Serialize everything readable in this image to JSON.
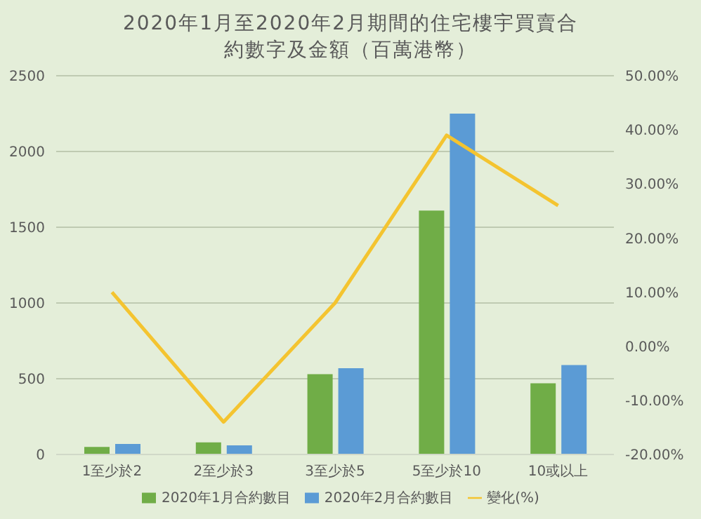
{
  "chart_data": {
    "type": "bar",
    "title": "2020年1月至2020年2月期間的住宅樓宇買賣合約數字及金額（百萬港幣）",
    "categories": [
      "1至少於2",
      "2至少於3",
      "3至少於5",
      "5至少於10",
      "10或以上"
    ],
    "series": [
      {
        "name": "2020年1月合約數目",
        "color": "#70ad47",
        "values": [
          50,
          80,
          530,
          1610,
          470
        ]
      },
      {
        "name": "2020年2月合約數目",
        "color": "#5b9bd5",
        "values": [
          70,
          60,
          570,
          2250,
          590
        ]
      },
      {
        "name": "變化(%)",
        "type": "line",
        "axis": "y2",
        "color": "#f4c430",
        "values": [
          10,
          -14,
          8,
          39,
          26
        ]
      }
    ],
    "ylim": [
      0,
      2500
    ],
    "yticks": [
      0,
      500,
      1000,
      1500,
      2000,
      2500
    ],
    "y2lim": [
      -20,
      50
    ],
    "y2ticks": [
      {
        "value": -20,
        "label": "-20.00%"
      },
      {
        "value": -10,
        "label": "-10.00%"
      },
      {
        "value": 0,
        "label": "0.00%"
      },
      {
        "value": 10,
        "label": "10.00%"
      },
      {
        "value": 20,
        "label": "20.00%"
      },
      {
        "value": 30,
        "label": "30.00%"
      },
      {
        "value": 40,
        "label": "40.00%"
      },
      {
        "value": 50,
        "label": "50.00%"
      }
    ],
    "grid": "y",
    "legend": "bottom",
    "marker": "none",
    "line_style": "solid"
  }
}
